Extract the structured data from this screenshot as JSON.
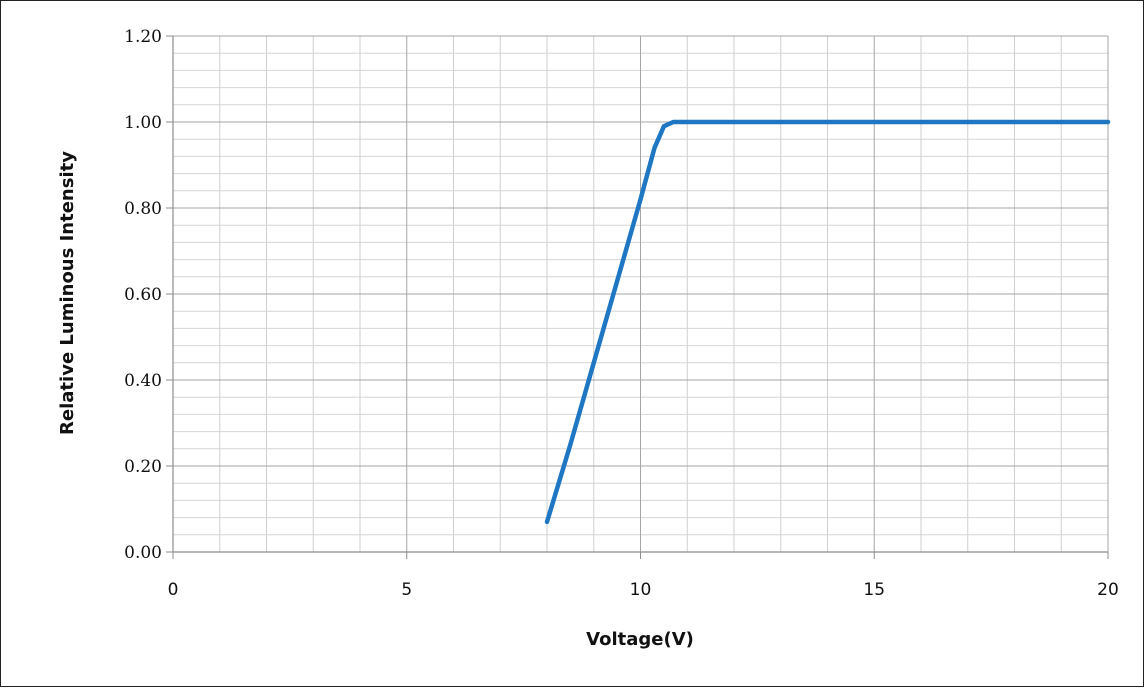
{
  "chart_data": {
    "type": "line",
    "title": "",
    "xlabel": "Voltage(V)",
    "ylabel": "Relative Luminous Intensity",
    "xlim": [
      0,
      20
    ],
    "ylim": [
      0,
      1.2
    ],
    "x_ticks": [
      "0",
      "5",
      "10",
      "15",
      "20"
    ],
    "y_ticks": [
      "0.00",
      "0.20",
      "0.40",
      "0.60",
      "0.80",
      "1.00",
      "1.20"
    ],
    "grid": true,
    "legend": "none",
    "series": [
      {
        "color": "#1f77c4",
        "x": [
          8.0,
          8.5,
          9.0,
          9.5,
          10.0,
          10.3,
          10.5,
          10.7,
          11.0,
          12.0,
          13.0,
          14.0,
          15.0,
          16.0,
          17.0,
          18.0,
          19.0,
          20.0
        ],
        "y": [
          0.07,
          0.25,
          0.44,
          0.63,
          0.82,
          0.94,
          0.99,
          1.0,
          1.0,
          1.0,
          1.0,
          1.0,
          1.0,
          1.0,
          1.0,
          1.0,
          1.0,
          1.0
        ]
      }
    ]
  }
}
